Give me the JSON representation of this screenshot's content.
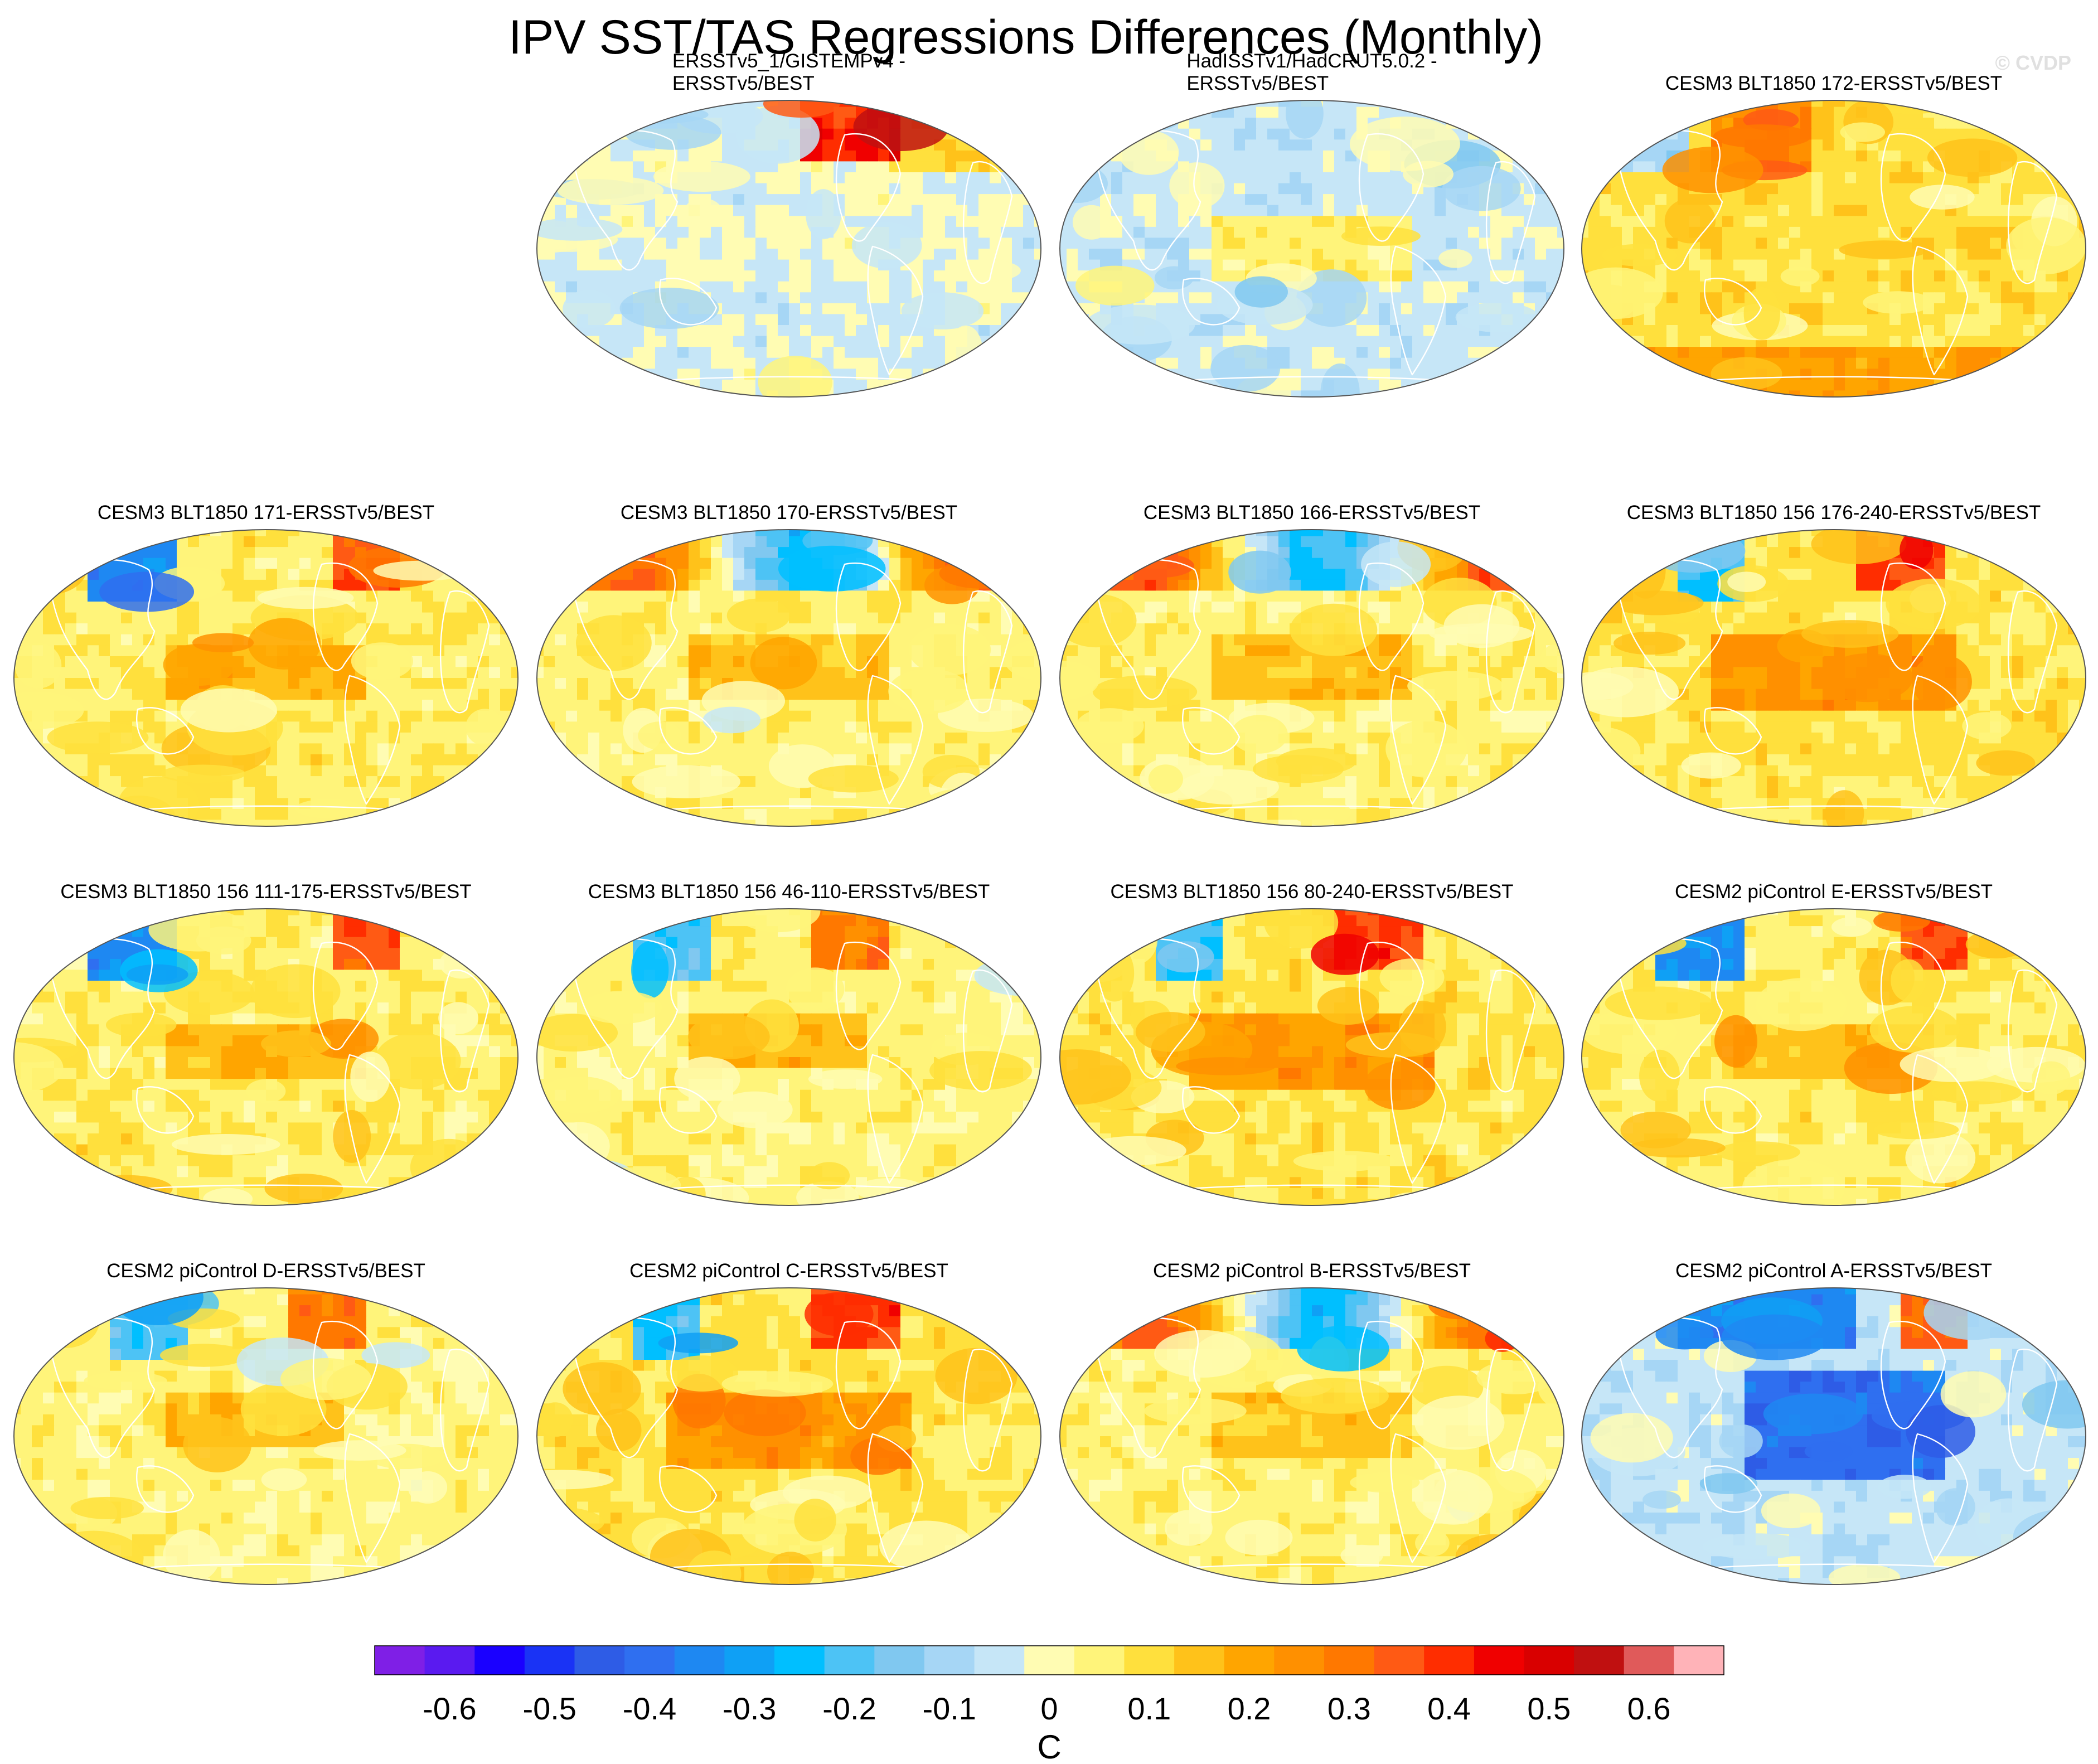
{
  "title": "IPV SST/TAS Regressions Differences (Monthly)",
  "credit": "© CVDP",
  "panels": [
    {
      "title": "ERSSTv5_1/GISTEMPv4 -\nERSSTv5/BEST",
      "pattern": "obs1",
      "seed": 11
    },
    {
      "title": "HadISSTv1/HadCRUT5.0.2 -\nERSSTv5/BEST",
      "pattern": "obs2",
      "seed": 23
    },
    {
      "title": "CESM3 BLT1850 172-ERSSTv5/BEST",
      "pattern": "warm_npac",
      "seed": 37
    },
    {
      "title": "CESM3 BLT1850 171-ERSSTv5/BEST",
      "pattern": "cold_npac",
      "seed": 41
    },
    {
      "title": "CESM3 BLT1850 170-ERSSTv5/BEST",
      "pattern": "warm_arctic",
      "seed": 53
    },
    {
      "title": "CESM3 BLT1850 166-ERSSTv5/BEST",
      "pattern": "warm_arctic",
      "seed": 67
    },
    {
      "title": "CESM3 BLT1850 156 176-240-ERSSTv5/BEST",
      "pattern": "warm_trop",
      "seed": 71
    },
    {
      "title": "CESM3 BLT1850 156 111-175-ERSSTv5/BEST",
      "pattern": "cold_npac",
      "seed": 83
    },
    {
      "title": "CESM3 BLT1850 156 46-110-ERSSTv5/BEST",
      "pattern": "mixed",
      "seed": 97
    },
    {
      "title": "CESM3 BLT1850 156 80-240-ERSSTv5/BEST",
      "pattern": "warm_trop",
      "seed": 101
    },
    {
      "title": "CESM2 piControl E-ERSSTv5/BEST",
      "pattern": "cold_npac",
      "seed": 113
    },
    {
      "title": "CESM2 piControl D-ERSSTv5/BEST",
      "pattern": "mixed",
      "seed": 127
    },
    {
      "title": "CESM2 piControl C-ERSSTv5/BEST",
      "pattern": "warm_trop",
      "seed": 131
    },
    {
      "title": "CESM2 piControl B-ERSSTv5/BEST",
      "pattern": "warm_arctic",
      "seed": 139
    },
    {
      "title": "CESM2 piControl A-ERSSTv5/BEST",
      "pattern": "cold_pac",
      "seed": 151
    }
  ],
  "chart_data": {
    "type": "heatmap",
    "title": "IPV SST/TAS Regressions Differences (Monthly)",
    "units": "C",
    "levels": [
      -0.65,
      -0.6,
      -0.55,
      -0.5,
      -0.45,
      -0.4,
      -0.35,
      -0.3,
      -0.25,
      -0.2,
      -0.15,
      -0.1,
      -0.05,
      0,
      0.05,
      0.1,
      0.15,
      0.2,
      0.25,
      0.3,
      0.35,
      0.4,
      0.45,
      0.5,
      0.55,
      0.6,
      0.65
    ],
    "tick_labels": [
      "-0.6",
      "-0.5",
      "-0.4",
      "-0.3",
      "-0.2",
      "-0.1",
      "0",
      "0.1",
      "0.2",
      "0.3",
      "0.4",
      "0.5",
      "0.6"
    ],
    "tick_values": [
      -0.6,
      -0.5,
      -0.4,
      -0.3,
      -0.2,
      -0.1,
      0,
      0.1,
      0.2,
      0.3,
      0.4,
      0.5,
      0.6
    ],
    "colors": [
      "#7f1fe6",
      "#5a1af0",
      "#1a00ff",
      "#1a33f5",
      "#2e5ce6",
      "#2f6ff0",
      "#1e88f2",
      "#0fa0f5",
      "#00bfff",
      "#4dc3f5",
      "#80c8f0",
      "#a6d6f5",
      "#c6e6f7",
      "#fffcb3",
      "#fff47a",
      "#ffe03d",
      "#ffc21a",
      "#ffa500",
      "#ff9000",
      "#ff7800",
      "#ff5a14",
      "#ff2d00",
      "#f00000",
      "#d90000",
      "#c01010",
      "#e05a5a",
      "#ffb3b8"
    ]
  }
}
